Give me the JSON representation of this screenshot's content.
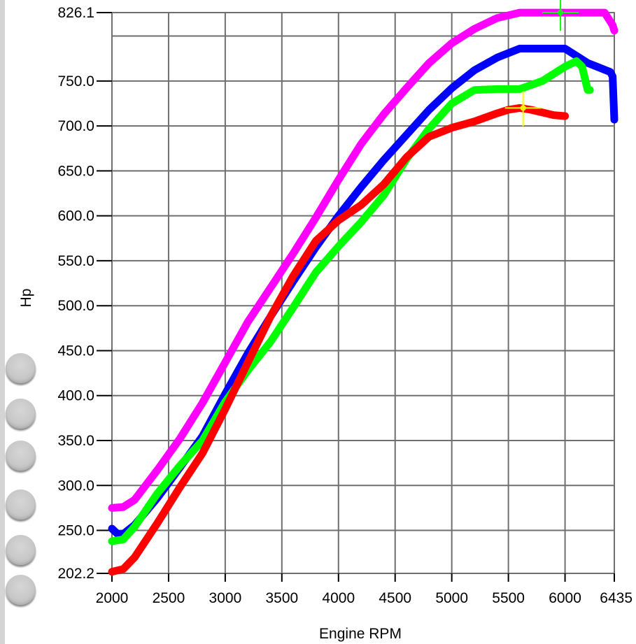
{
  "chart_data": {
    "type": "line",
    "title": "",
    "xlabel": "Engine RPM",
    "ylabel": "Hp",
    "xlim": [
      2000,
      6435
    ],
    "ylim": [
      202.2,
      826.1
    ],
    "x_ticks": [
      2000,
      2500,
      3000,
      3500,
      4000,
      4500,
      5000,
      5500,
      6000,
      6435
    ],
    "x_tick_labels": [
      "2000",
      "2500",
      "3000",
      "3500",
      "4000",
      "4500",
      "5000",
      "5500",
      "6000",
      "6435"
    ],
    "y_ticks": [
      202.2,
      250.0,
      300.0,
      350.0,
      400.0,
      450.0,
      500.0,
      550.0,
      600.0,
      650.0,
      700.0,
      750.0,
      826.1
    ],
    "y_tick_labels": [
      "202.2",
      "250.0",
      "300.0",
      "350.0",
      "400.0",
      "450.0",
      "500.0",
      "550.0",
      "600.0",
      "650.0",
      "700.0",
      "750.0",
      "826.1"
    ],
    "grid": true,
    "series": [
      {
        "color": "#ff00ff",
        "x": [
          2000,
          2100,
          2200,
          2400,
          2600,
          2800,
          3000,
          3200,
          3400,
          3600,
          3800,
          4000,
          4200,
          4400,
          4600,
          4800,
          5000,
          5200,
          5400,
          5600,
          5800,
          6000,
          6200,
          6350,
          6420,
          6435
        ],
        "y": [
          275,
          276,
          284,
          317,
          352,
          392,
          437,
          482,
          520,
          558,
          598,
          640,
          680,
          713,
          742,
          770,
          792,
          808,
          820,
          826,
          826,
          826,
          826,
          826,
          812,
          806
        ]
      },
      {
        "color": "#0000ff",
        "x": [
          2000,
          2050,
          2100,
          2200,
          2400,
          2600,
          2800,
          3000,
          3200,
          3400,
          3600,
          3800,
          4000,
          4200,
          4400,
          4600,
          4800,
          5000,
          5200,
          5400,
          5600,
          5800,
          6000,
          6100,
          6200,
          6300,
          6400,
          6420,
          6435
        ],
        "y": [
          252,
          246,
          246,
          256,
          286,
          320,
          355,
          402,
          447,
          488,
          527,
          565,
          600,
          632,
          662,
          690,
          718,
          742,
          762,
          776,
          786,
          786,
          786,
          778,
          770,
          765,
          760,
          755,
          707
        ]
      },
      {
        "color": "#00ff00",
        "x": [
          2000,
          2100,
          2200,
          2400,
          2600,
          2800,
          3000,
          3200,
          3400,
          3600,
          3800,
          4000,
          4200,
          4400,
          4600,
          4800,
          5000,
          5200,
          5400,
          5600,
          5800,
          6000,
          6100,
          6150,
          6200,
          6220
        ],
        "y": [
          238,
          240,
          254,
          291,
          322,
          350,
          393,
          428,
          460,
          498,
          537,
          566,
          593,
          623,
          663,
          697,
          725,
          740,
          741,
          741,
          750,
          766,
          772,
          766,
          740,
          740
        ]
      },
      {
        "color": "#ff0000",
        "x": [
          2000,
          2100,
          2200,
          2400,
          2600,
          2800,
          3000,
          3200,
          3400,
          3600,
          3800,
          4000,
          4200,
          4400,
          4600,
          4800,
          5000,
          5200,
          5400,
          5500,
          5600,
          5700,
          5800,
          5900,
          6000
        ],
        "y": [
          204,
          207,
          220,
          258,
          298,
          336,
          385,
          437,
          488,
          533,
          572,
          595,
          612,
          635,
          665,
          688,
          698,
          705,
          714,
          718,
          720,
          718,
          715,
          712,
          711
        ]
      }
    ],
    "markers": [
      {
        "color": "#ffff00",
        "x": 5630,
        "y": 720
      },
      {
        "color": "#00ff00",
        "x": 5960,
        "y": 826
      }
    ]
  },
  "ui": {
    "buttons": [
      "round-button-1",
      "round-button-2",
      "round-button-3",
      "round-button-4",
      "round-button-5",
      "round-button-6"
    ]
  }
}
